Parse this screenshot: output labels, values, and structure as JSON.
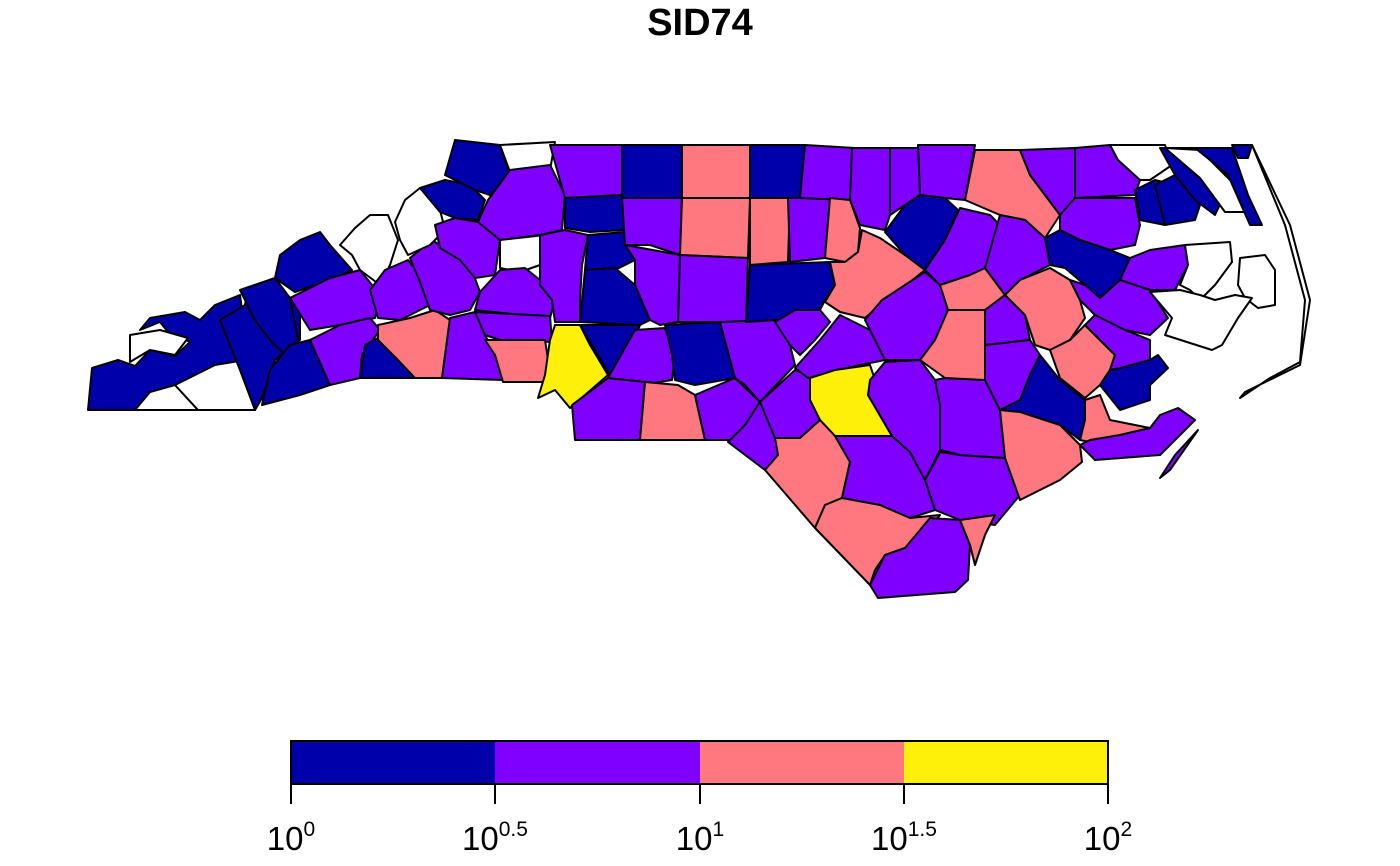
{
  "title": "SID74",
  "legend": {
    "classes": [
      {
        "from": 1,
        "to": 3.16,
        "color": "#0000AA"
      },
      {
        "from": 3.16,
        "to": 10,
        "color": "#8000FF"
      },
      {
        "from": 10,
        "to": 31.6,
        "color": "#FF7880"
      },
      {
        "from": 31.6,
        "to": 100,
        "color": "#FFF00A"
      }
    ],
    "no_data_color": "#FFFFFF",
    "scale": "log10",
    "ticks": [
      {
        "base": "10",
        "exp": "0"
      },
      {
        "base": "10",
        "exp": "0.5"
      },
      {
        "base": "10",
        "exp": "1"
      },
      {
        "base": "10",
        "exp": "1.5"
      },
      {
        "base": "10",
        "exp": "2"
      }
    ]
  }
}
